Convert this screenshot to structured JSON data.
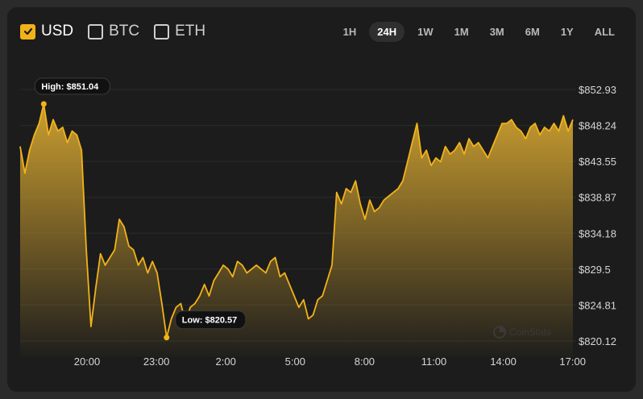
{
  "currencies": [
    {
      "label": "USD",
      "checked": true
    },
    {
      "label": "BTC",
      "checked": false
    },
    {
      "label": "ETH",
      "checked": false
    }
  ],
  "ranges": [
    "1H",
    "24H",
    "1W",
    "1M",
    "3M",
    "6M",
    "1Y",
    "ALL"
  ],
  "active_range": "24H",
  "watermark": "CoinStats",
  "colors": {
    "accent": "#f2b319",
    "background": "#1c1c1c"
  },
  "chart_data": {
    "type": "area",
    "x_ticks": [
      "20:00",
      "23:00",
      "2:00",
      "5:00",
      "8:00",
      "11:00",
      "14:00",
      "17:00"
    ],
    "y_ticks": [
      852.93,
      848.24,
      843.55,
      838.87,
      834.18,
      829.5,
      824.81,
      820.12
    ],
    "y_tick_labels": [
      "$852.93",
      "$848.24",
      "$843.55",
      "$838.87",
      "$834.18",
      "$829.5",
      "$824.81",
      "$820.12"
    ],
    "ylim": [
      820.12,
      852.93
    ],
    "x_hours_from_18": [
      -0.5,
      0,
      0.5,
      1,
      1.5,
      2,
      2.5,
      3,
      3.5,
      4
    ],
    "high_label": "High: $851.04",
    "low_label": "Low: $820.57",
    "high": {
      "time": "18:30",
      "value": 851.04
    },
    "low": {
      "time": "22:30",
      "value": 820.57
    },
    "series": [
      {
        "values": [
          845.5,
          842,
          845,
          847,
          848.5,
          851.04,
          847,
          849,
          847.5,
          848,
          846,
          847.5,
          847,
          845,
          832,
          822,
          827,
          831.5,
          830,
          831,
          832,
          836,
          835,
          832.5,
          832,
          830,
          831,
          829,
          830.5,
          829,
          825,
          820.57,
          823,
          824.5,
          825,
          822.5,
          824.5,
          825,
          826,
          827.5,
          826,
          828,
          829,
          830,
          829.5,
          828.5,
          830.5,
          830,
          829,
          829.5,
          830,
          829.5,
          829,
          830.5,
          831,
          828.5,
          829,
          827.5,
          826,
          824.5,
          825.5,
          823,
          823.5,
          825.5,
          826,
          828,
          830,
          839.5,
          838,
          840,
          839.5,
          841,
          838,
          836,
          838.5,
          837,
          837.5,
          838.5,
          839,
          839.5,
          840,
          841,
          843.5,
          846,
          848.5,
          844,
          845,
          843,
          844,
          843.5,
          845.5,
          844.5,
          845,
          846,
          844.5,
          846.5,
          845.5,
          846,
          845,
          844,
          845.5,
          847,
          848.5,
          848.5,
          849,
          848,
          847.5,
          846.5,
          848,
          848.5,
          847,
          848,
          847.5,
          848.5,
          847.5,
          849.5,
          847.5,
          849
        ]
      }
    ],
    "grid": true,
    "legend": "none"
  }
}
